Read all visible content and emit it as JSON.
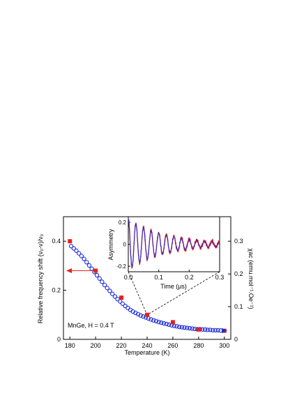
{
  "chart_data": [
    {
      "type": "scatter",
      "xlabel": "Temperature (K)",
      "ylabel_left": "Relative frequency shift (ν₀-ν)/ν₀",
      "ylabel_right": "χac (emu.mol⁻¹.Oe⁻¹)",
      "annotation": "MnGe, H = 0.4 T",
      "xlim": [
        175,
        305
      ],
      "ylim_left": [
        0,
        0.5
      ],
      "ylim_right": [
        0,
        0.375
      ],
      "x_ticks": [
        "180",
        "200",
        "220",
        "240",
        "260",
        "280",
        "300"
      ],
      "y_left_ticks": [
        "0",
        "0.2",
        "0.4"
      ],
      "y_right_ticks": [
        "0",
        "0.1",
        "0.2",
        "0.3"
      ],
      "series": [
        {
          "axis": "left",
          "color": "#e8211b",
          "marker": "square",
          "x": [
            180,
            200,
            220,
            240,
            260,
            280,
            300
          ],
          "y": [
            0.4,
            0.28,
            0.17,
            0.1,
            0.07,
            0.04,
            0.035
          ]
        },
        {
          "axis": "right",
          "color": "#1c2bd6",
          "marker": "open-circle",
          "x": [
            181,
            183,
            185,
            187,
            189,
            191,
            193,
            195,
            197,
            199,
            201,
            203,
            205,
            207,
            209,
            211,
            213,
            215,
            217,
            219,
            221,
            223,
            225,
            227,
            229,
            231,
            233,
            235,
            237,
            239,
            241,
            243,
            245,
            247,
            249,
            251,
            253,
            255,
            257,
            259,
            261,
            263,
            265,
            267,
            269,
            271,
            273,
            275,
            277,
            279,
            281,
            283,
            285,
            287,
            289,
            291,
            293,
            295,
            297
          ],
          "y": [
            0.285,
            0.278,
            0.271,
            0.263,
            0.255,
            0.246,
            0.236,
            0.226,
            0.216,
            0.206,
            0.196,
            0.186,
            0.176,
            0.166,
            0.157,
            0.148,
            0.139,
            0.131,
            0.123,
            0.116,
            0.109,
            0.102,
            0.096,
            0.09,
            0.085,
            0.081,
            0.077,
            0.073,
            0.07,
            0.067,
            0.064,
            0.061,
            0.058,
            0.056,
            0.053,
            0.051,
            0.049,
            0.047,
            0.045,
            0.043,
            0.041,
            0.04,
            0.038,
            0.037,
            0.036,
            0.035,
            0.034,
            0.033,
            0.032,
            0.031,
            0.031,
            0.03,
            0.03,
            0.029,
            0.029,
            0.028,
            0.028,
            0.028,
            0.027
          ]
        }
      ],
      "arrows": [
        {
          "series": "left",
          "direction": "left"
        },
        {
          "series": "right",
          "direction": "right"
        }
      ]
    },
    {
      "type": "line",
      "xlabel": "Time (μs)",
      "ylabel": "Asymmetry",
      "xlim": [
        0,
        0.3
      ],
      "ylim": [
        -0.25,
        0.25
      ],
      "x_ticks": [
        "0.0",
        "0.1",
        "0.2",
        "0.3"
      ],
      "y_ticks": [
        "-0.2",
        "0",
        "0.2"
      ],
      "series": [
        {
          "color": "#e8211b",
          "kind": "data",
          "amplitude": 0.23,
          "frequency_mhz": 40,
          "decay_rate_per_us": 8.0,
          "baseline": 0.0
        },
        {
          "color": "#1c2bd6",
          "kind": "fit",
          "amplitude": 0.23,
          "frequency_mhz": 40,
          "decay_rate_per_us": 8.0,
          "baseline": 0.0
        }
      ],
      "zoom_link_x": 240
    }
  ]
}
